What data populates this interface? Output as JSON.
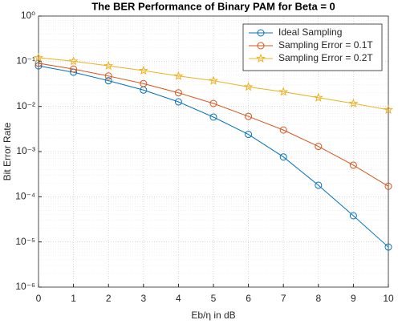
{
  "chart_data": {
    "type": "line",
    "title": "The BER Performance of Binary PAM for Beta = 0",
    "xlabel": "Eb/η in dB",
    "ylabel": "Bit Error Rate",
    "x": [
      0,
      1,
      2,
      3,
      4,
      5,
      6,
      7,
      8,
      9,
      10
    ],
    "series": [
      {
        "name": "Ideal Sampling",
        "color": "#0072bd",
        "marker": "circle",
        "values": [
          0.079,
          0.057,
          0.037,
          0.023,
          0.0126,
          0.0058,
          0.0024,
          0.00076,
          0.00018,
          3.8e-05,
          7.7e-06
        ]
      },
      {
        "name": "Sampling Error = 0.1T",
        "color": "#d95319",
        "marker": "circle",
        "values": [
          0.09,
          0.067,
          0.047,
          0.032,
          0.02,
          0.0116,
          0.006,
          0.003,
          0.0013,
          0.0005,
          0.00017
        ]
      },
      {
        "name": "Sampling Error = 0.2T",
        "color": "#edb120",
        "marker": "star",
        "values": [
          0.12,
          0.1,
          0.079,
          0.062,
          0.047,
          0.037,
          0.027,
          0.021,
          0.0156,
          0.0116,
          0.0084
        ]
      }
    ],
    "xlim": [
      0,
      10
    ],
    "xticks": [
      0,
      1,
      2,
      3,
      4,
      5,
      6,
      7,
      8,
      9,
      10
    ],
    "ylim": [
      1e-06,
      1
    ],
    "log_y": true,
    "yticks": [
      {
        "value": 1e-06,
        "label": "10⁻⁶"
      },
      {
        "value": 1e-05,
        "label": "10⁻⁵"
      },
      {
        "value": 0.0001,
        "label": "10⁻⁴"
      },
      {
        "value": 0.001,
        "label": "10⁻³"
      },
      {
        "value": 0.01,
        "label": "10⁻²"
      },
      {
        "value": 0.1,
        "label": "10⁻¹"
      },
      {
        "value": 1,
        "label": "10⁰"
      }
    ],
    "grid": true,
    "legend": "upper-right"
  }
}
